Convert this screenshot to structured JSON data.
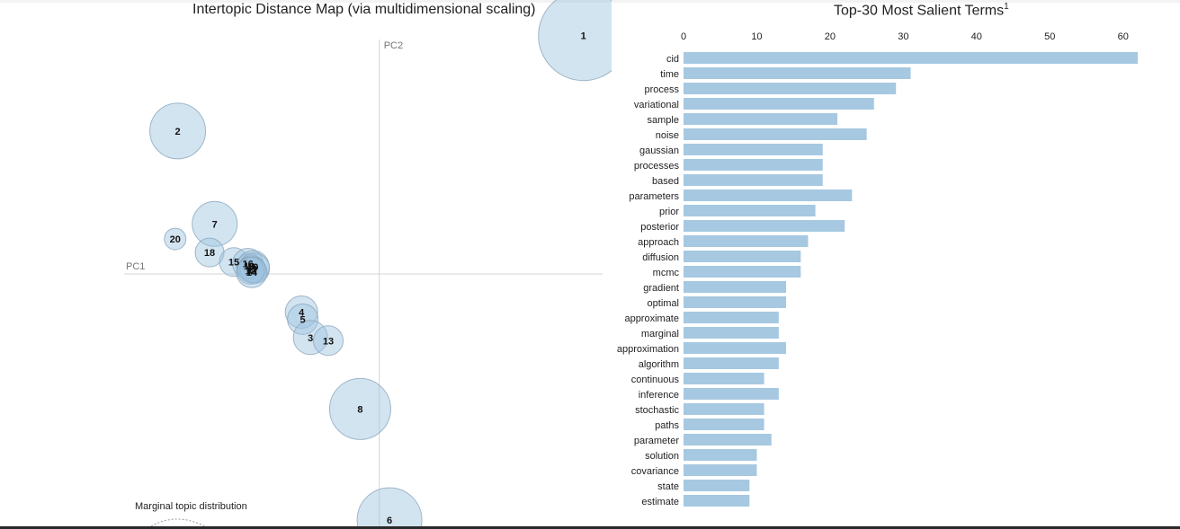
{
  "page": {
    "map_title": "Intertopic Distance Map (via multidimensional scaling)",
    "terms_title": "Top-30 Most Salient Terms",
    "terms_title_footnote": "1",
    "pc1_label": "PC1",
    "pc2_label": "PC2",
    "marginal_title": "Marginal topic distribution"
  },
  "colors": {
    "bubble_fill": "#9ec3e0",
    "bubble_stroke": "#8aa6bd",
    "bar_fill": "#a6c8e1",
    "axis_line": "#d5d5d5"
  },
  "chart_data": [
    {
      "type": "scatter",
      "title": "Intertopic Distance Map (via multidimensional scaling)",
      "xlabel": "PC1",
      "ylabel": "PC2",
      "xlim": [
        -0.2,
        0.175
      ],
      "ylim": [
        -0.32,
        0.32
      ],
      "points": [
        {
          "label": "1",
          "x": 0.16,
          "y": 0.3,
          "size": 1.0
        },
        {
          "label": "2",
          "x": -0.158,
          "y": 0.18,
          "size": 0.62
        },
        {
          "label": "7",
          "x": -0.129,
          "y": 0.063,
          "size": 0.5
        },
        {
          "label": "20",
          "x": -0.16,
          "y": 0.044,
          "size": 0.24
        },
        {
          "label": "18",
          "x": -0.133,
          "y": 0.027,
          "size": 0.32
        },
        {
          "label": "15",
          "x": -0.114,
          "y": 0.015,
          "size": 0.32
        },
        {
          "label": "16",
          "x": -0.103,
          "y": 0.013,
          "size": 0.34
        },
        {
          "label": "19",
          "x": -0.102,
          "y": 0.01,
          "size": 0.28
        },
        {
          "label": "10",
          "x": -0.099,
          "y": 0.009,
          "size": 0.36
        },
        {
          "label": "9",
          "x": -0.098,
          "y": 0.007,
          "size": 0.34
        },
        {
          "label": "11",
          "x": -0.1,
          "y": 0.006,
          "size": 0.3
        },
        {
          "label": "17",
          "x": -0.099,
          "y": 0.005,
          "size": 0.28
        },
        {
          "label": "12",
          "x": -0.101,
          "y": 0.004,
          "size": 0.3
        },
        {
          "label": "14",
          "x": -0.1,
          "y": 0.002,
          "size": 0.34
        },
        {
          "label": "4",
          "x": -0.061,
          "y": -0.048,
          "size": 0.36
        },
        {
          "label": "5",
          "x": -0.06,
          "y": -0.057,
          "size": 0.34
        },
        {
          "label": "3",
          "x": -0.054,
          "y": -0.08,
          "size": 0.38
        },
        {
          "label": "13",
          "x": -0.04,
          "y": -0.084,
          "size": 0.33
        },
        {
          "label": "8",
          "x": -0.015,
          "y": -0.17,
          "size": 0.68
        },
        {
          "label": "6",
          "x": 0.008,
          "y": -0.31,
          "size": 0.72
        }
      ]
    },
    {
      "type": "bar",
      "orientation": "horizontal",
      "title": "Top-30 Most Salient Terms",
      "xlim": [
        0,
        62
      ],
      "xticks": [
        0,
        10,
        20,
        30,
        40,
        50,
        60
      ],
      "categories": [
        "cid",
        "time",
        "process",
        "variational",
        "sample",
        "noise",
        "gaussian",
        "processes",
        "based",
        "parameters",
        "prior",
        "posterior",
        "approach",
        "diffusion",
        "mcmc",
        "gradient",
        "optimal",
        "approximate",
        "marginal",
        "approximation",
        "algorithm",
        "continuous",
        "inference",
        "stochastic",
        "paths",
        "parameter",
        "solution",
        "covariance",
        "state",
        "estimate"
      ],
      "values": [
        62,
        31,
        29,
        26,
        21,
        25,
        19,
        19,
        19,
        23,
        18,
        22,
        17,
        16,
        16,
        14,
        14,
        13,
        13,
        14,
        13,
        11,
        13,
        11,
        11,
        12,
        10,
        10,
        9,
        9
      ]
    }
  ]
}
